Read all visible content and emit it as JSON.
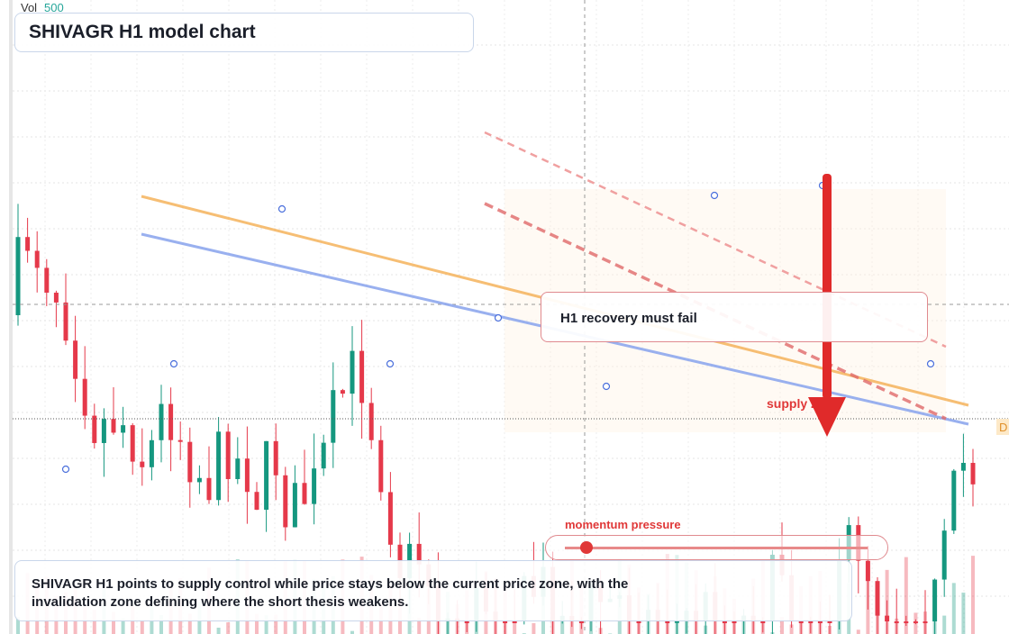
{
  "header": {
    "vol_label": "Vol",
    "vol_value": "500",
    "title": "SHIVAGR H1 model chart"
  },
  "annotations": {
    "callout": "H1 recovery must fail",
    "zone": "supply zone",
    "momentum": "momentum pressure",
    "price_tag": "D"
  },
  "caption": "SHIVAGR H1 points to supply control while price stays below the current price zone, with the invalidation zone defining where the short thesis weakens."
}
